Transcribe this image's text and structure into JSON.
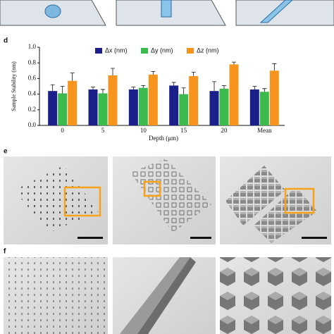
{
  "panel_labels": [
    "d",
    "e",
    "f"
  ],
  "chart_data": {
    "type": "bar",
    "x_label": "Depth (μm)",
    "y_label": "Sample Stability (nm)",
    "categories": [
      "0",
      "5",
      "10",
      "15",
      "20",
      "Mean"
    ],
    "series": [
      {
        "name": "Δx (nm)",
        "color": "#1b1f8a",
        "values": [
          0.44,
          0.46,
          0.46,
          0.51,
          0.44,
          0.46
        ],
        "errors": [
          0.08,
          0.03,
          0.03,
          0.04,
          0.12,
          0.04
        ]
      },
      {
        "name": "Δy (nm)",
        "color": "#3dba4e",
        "values": [
          0.41,
          0.41,
          0.48,
          0.4,
          0.47,
          0.43
        ],
        "errors": [
          0.09,
          0.05,
          0.03,
          0.08,
          0.04,
          0.04
        ]
      },
      {
        "name": "Δz (nm)",
        "color": "#f7941d",
        "values": [
          0.57,
          0.64,
          0.65,
          0.63,
          0.78,
          0.7
        ],
        "errors": [
          0.1,
          0.09,
          0.04,
          0.05,
          0.03,
          0.09
        ]
      }
    ],
    "ylim": [
      0,
      1.0
    ],
    "yticks": [
      {
        "value": 0,
        "label": "0.0"
      },
      0.2,
      0.4,
      0.6,
      0.8,
      {
        "value": 1.0,
        "label": "1.0"
      }
    ],
    "legend": "top"
  }
}
